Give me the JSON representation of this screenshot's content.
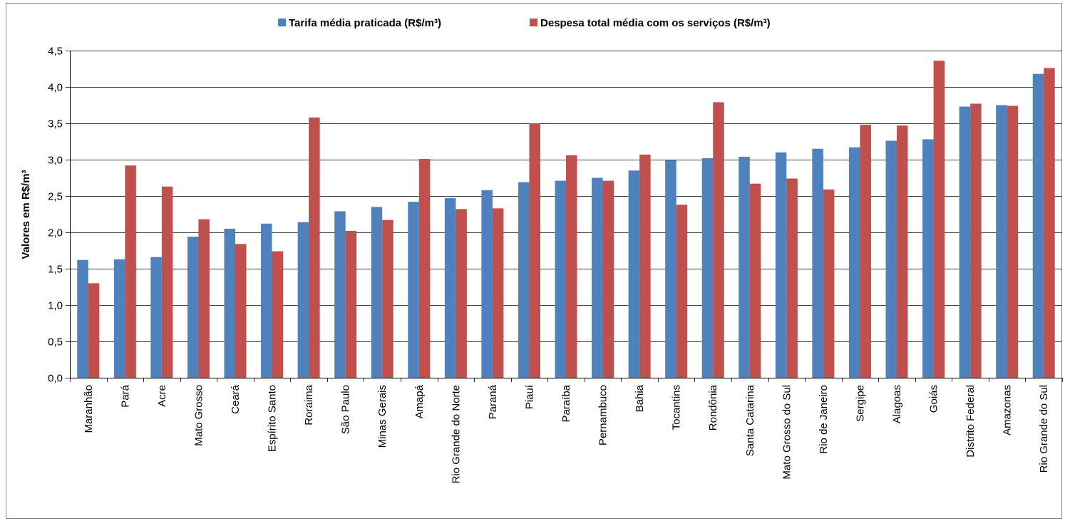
{
  "chart_data": {
    "type": "bar",
    "title": "",
    "xlabel": "",
    "ylabel": "Valores em R$/m³",
    "ylim": [
      0,
      4.5
    ],
    "ytick_step": 0.5,
    "ytick_labels": [
      "0,0",
      "0,5",
      "1,0",
      "1,5",
      "2,0",
      "2,5",
      "3,0",
      "3,5",
      "4,0",
      "4,5"
    ],
    "grid": true,
    "legend_position": "top",
    "categories": [
      "Maranhão",
      "Pará",
      "Acre",
      "Mato Grosso",
      "Ceará",
      "Espírito Santo",
      "Roraima",
      "São Paulo",
      "Minas Gerais",
      "Amapá",
      "Rio Grande do Norte",
      "Paraná",
      "Piauí",
      "Paraíba",
      "Pernambuco",
      "Bahia",
      "Tocantins",
      "Rondônia",
      "Santa Catarina",
      "Mato Grosso do Sul",
      "Rio de Janeiro",
      "Sergipe",
      "Alagoas",
      "Goiás",
      "Distrito Federal",
      "Amazonas",
      "Rio Grande do Sul"
    ],
    "series": [
      {
        "name": "Tarifa média praticada (R$/m³)",
        "color": "#4F81BD",
        "values": [
          1.62,
          1.63,
          1.66,
          1.94,
          2.05,
          2.12,
          2.14,
          2.29,
          2.35,
          2.42,
          2.47,
          2.58,
          2.69,
          2.71,
          2.75,
          2.85,
          2.99,
          3.02,
          3.04,
          3.1,
          3.15,
          3.17,
          3.26,
          3.28,
          3.73,
          3.75,
          4.18
        ]
      },
      {
        "name": "Despesa total média com os serviços (R$/m³)",
        "color": "#C0504D",
        "values": [
          1.3,
          2.92,
          2.63,
          2.18,
          1.84,
          1.74,
          3.58,
          2.02,
          2.17,
          3.01,
          2.32,
          2.33,
          3.5,
          3.06,
          2.71,
          3.07,
          2.38,
          3.79,
          2.67,
          2.74,
          2.59,
          3.48,
          3.47,
          4.36,
          3.77,
          3.74,
          4.26
        ]
      }
    ]
  }
}
